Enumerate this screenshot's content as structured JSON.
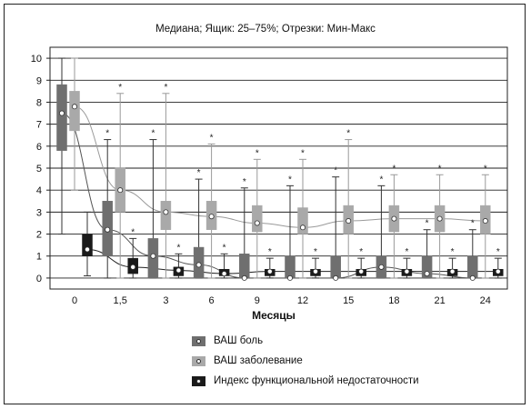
{
  "chart_data": {
    "type": "box",
    "title": "Медиана; Ящик: 25–75%; Отрезки: Мин-Макс",
    "xlabel": "Месяцы",
    "ylabel": "",
    "categories": [
      "0",
      "1,5",
      "3",
      "6",
      "9",
      "12",
      "15",
      "18",
      "21",
      "24"
    ],
    "yticks": [
      0,
      1,
      2,
      3,
      4,
      5,
      6,
      7,
      8,
      9,
      10
    ],
    "ylim": [
      -0.5,
      10.5
    ],
    "grid": true,
    "legend_position": "bottom-center",
    "series": [
      {
        "name": "ВАШ боль",
        "color": "#6f6f6f",
        "median": [
          7.5,
          2.2,
          1.0,
          0.6,
          0.0,
          0.0,
          0.0,
          0.5,
          0.2,
          0.0
        ],
        "q1": [
          5.8,
          1.0,
          0.0,
          0.0,
          0.0,
          0.0,
          0.0,
          0.0,
          0.0,
          0.0
        ],
        "q3": [
          8.8,
          3.5,
          1.8,
          1.4,
          1.1,
          1.0,
          1.0,
          1.0,
          1.0,
          1.0
        ],
        "min": [
          2.0,
          0.0,
          0.0,
          0.0,
          0.0,
          0.0,
          0.0,
          0.0,
          0.0,
          0.0
        ],
        "max": [
          10.0,
          6.3,
          6.3,
          4.5,
          4.1,
          4.2,
          4.6,
          4.2,
          2.2,
          2.2
        ],
        "outlier_marker": [
          false,
          true,
          true,
          true,
          true,
          true,
          true,
          true,
          true,
          true
        ]
      },
      {
        "name": "ВАШ заболевание",
        "color": "#a9a9a9",
        "median": [
          7.8,
          4.0,
          3.0,
          2.8,
          2.5,
          2.3,
          2.6,
          2.7,
          2.7,
          2.6
        ],
        "q1": [
          6.7,
          3.0,
          2.2,
          2.2,
          2.1,
          2.0,
          2.0,
          2.1,
          2.1,
          2.0
        ],
        "q3": [
          8.5,
          5.0,
          3.5,
          3.5,
          3.3,
          3.2,
          3.3,
          3.3,
          3.3,
          3.3
        ],
        "min": [
          4.0,
          0.0,
          0.0,
          0.0,
          0.0,
          0.0,
          0.0,
          0.0,
          0.0,
          0.0
        ],
        "max": [
          10.0,
          8.4,
          8.4,
          6.1,
          5.4,
          5.4,
          6.3,
          4.7,
          4.7,
          4.7
        ],
        "outlier_marker": [
          false,
          true,
          true,
          true,
          true,
          true,
          true,
          true,
          true,
          true
        ]
      },
      {
        "name": "Индекс функциональной недостаточности",
        "color": "#1a1a1a",
        "median": [
          1.3,
          0.5,
          0.35,
          0.2,
          0.3,
          0.3,
          0.3,
          0.3,
          0.3,
          0.3
        ],
        "q1": [
          1.0,
          0.2,
          0.1,
          0.1,
          0.1,
          0.1,
          0.1,
          0.1,
          0.1,
          0.1
        ],
        "q3": [
          2.0,
          0.9,
          0.5,
          0.4,
          0.4,
          0.4,
          0.4,
          0.4,
          0.4,
          0.4
        ],
        "min": [
          0.1,
          0.0,
          0.0,
          0.0,
          0.0,
          0.0,
          0.0,
          0.0,
          0.0,
          0.0
        ],
        "max": [
          3.0,
          1.8,
          1.1,
          1.1,
          0.9,
          0.9,
          0.9,
          0.9,
          0.9,
          0.9
        ],
        "outlier_marker": [
          false,
          true,
          true,
          true,
          true,
          true,
          true,
          true,
          true,
          true
        ]
      }
    ]
  }
}
